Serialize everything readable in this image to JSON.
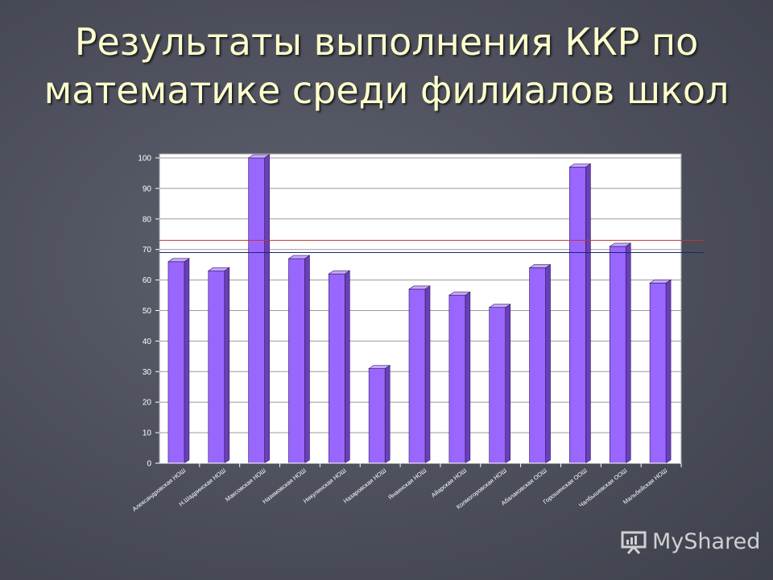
{
  "slide": {
    "title": "Результаты выполнения ККР по математике среди филиалов школ"
  },
  "watermark": {
    "text": "MyShared"
  },
  "chart_data": {
    "type": "bar",
    "title": "",
    "xlabel": "",
    "ylabel": "",
    "ylim": [
      0,
      100
    ],
    "yticks": [
      "0",
      "10",
      "20",
      "30",
      "40",
      "50",
      "60",
      "70",
      "80",
      "90",
      "100"
    ],
    "grid": true,
    "categories": [
      "Александровская НОШ",
      "Н.Шадринская НОШ",
      "Максовская НОШ",
      "Назимовская НОШ",
      "Никулинская НОШ",
      "Назаровская НОШ",
      "Янаинская НОШ",
      "Айарская НОШ",
      "Колмогоровская НОШ",
      "Абалаковская ООШ",
      "Горошинская ООШ",
      "Чалбышевская ООШ",
      "Мальбейская НОШ"
    ],
    "series": [
      {
        "values": [
          66,
          63,
          100,
          67,
          62,
          31,
          57,
          55,
          51,
          64,
          97,
          71,
          59
        ]
      }
    ],
    "reference_lines": [
      {
        "value": 73,
        "color": "#c0392b"
      },
      {
        "value": 69,
        "color": "#1a237e"
      }
    ],
    "bar_color": "#9966ff"
  }
}
